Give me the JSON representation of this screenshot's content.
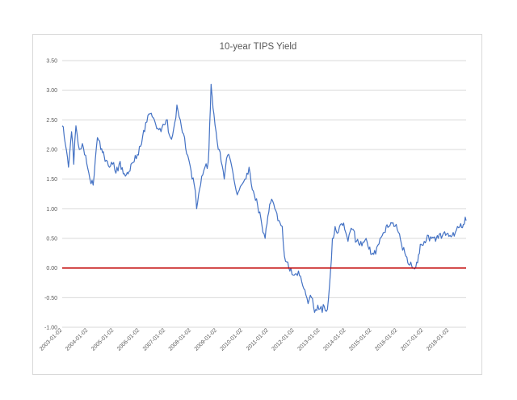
{
  "chart_data": {
    "type": "line",
    "title": "10-year TIPS Yield",
    "xlabel": "",
    "ylabel": "",
    "ylim": [
      -1.0,
      3.5
    ],
    "grid": true,
    "y_ticks": [
      "3.50",
      "3.00",
      "2.50",
      "2.00",
      "1.50",
      "1.00",
      "0.50",
      "0.00",
      "-0.50",
      "-1.00"
    ],
    "y_tick_values": [
      3.5,
      3.0,
      2.5,
      2.0,
      1.5,
      1.0,
      0.5,
      0.0,
      -0.5,
      -1.0
    ],
    "x_ticks": [
      "2003-01-02",
      "2004-01-02",
      "2005-01-02",
      "2006-01-02",
      "2007-01-02",
      "2008-01-02",
      "2009-01-02",
      "2010-01-02",
      "2011-01-02",
      "2012-01-02",
      "2013-01-02",
      "2014-01-02",
      "2015-01-02",
      "2016-01-02",
      "2017-01-02",
      "2018-01-02"
    ],
    "xlim": [
      "2003-01-02",
      "2018-08-31"
    ],
    "colors": {
      "series": "#4472c4",
      "zero_line": "#c00000",
      "grid": "#d9d9d9",
      "text": "#595959"
    },
    "series": [
      {
        "color": "#4472c4",
        "x": [
          "2003-01-02",
          "2003-02-15",
          "2003-04-01",
          "2003-05-15",
          "2003-06-15",
          "2003-07-15",
          "2003-09-01",
          "2003-10-15",
          "2003-12-01",
          "2004-01-15",
          "2004-03-15",
          "2004-05-15",
          "2004-07-01",
          "2004-09-01",
          "2004-11-01",
          "2004-12-15",
          "2005-02-01",
          "2005-04-01",
          "2005-06-15",
          "2005-09-01",
          "2005-11-01",
          "2006-01-15",
          "2006-03-15",
          "2006-05-15",
          "2006-07-01",
          "2006-09-01",
          "2006-11-01",
          "2007-01-15",
          "2007-03-15",
          "2007-05-15",
          "2007-06-15",
          "2007-08-01",
          "2007-10-01",
          "2007-11-15",
          "2008-01-15",
          "2008-03-01",
          "2008-03-20",
          "2008-05-15",
          "2008-07-15",
          "2008-09-01",
          "2008-09-20",
          "2008-10-10",
          "2008-10-25",
          "2008-11-20",
          "2008-12-20",
          "2009-01-20",
          "2009-03-01",
          "2009-04-15",
          "2009-06-01",
          "2009-08-01",
          "2009-10-01",
          "2009-12-15",
          "2010-02-01",
          "2010-04-01",
          "2010-06-01",
          "2010-08-01",
          "2010-10-15",
          "2010-11-15",
          "2011-02-01",
          "2011-04-01",
          "2011-05-15",
          "2011-07-15",
          "2011-08-15",
          "2011-10-01",
          "2011-11-15",
          "2012-01-15",
          "2012-03-01",
          "2012-05-01",
          "2012-07-15",
          "2012-09-01",
          "2012-10-15",
          "2012-12-15",
          "2013-02-01",
          "2013-03-01",
          "2013-04-15",
          "2013-05-15",
          "2013-06-25",
          "2013-08-01",
          "2013-09-15",
          "2013-11-01",
          "2013-12-31",
          "2014-02-01",
          "2014-04-01",
          "2014-06-01",
          "2014-08-01",
          "2014-10-15",
          "2015-01-15",
          "2015-03-15",
          "2015-05-01",
          "2015-07-01",
          "2015-09-01",
          "2015-11-15",
          "2016-01-15",
          "2016-03-15",
          "2016-05-01",
          "2016-07-08",
          "2016-08-15",
          "2016-10-01",
          "2016-11-20",
          "2017-01-15",
          "2017-03-15",
          "2017-05-01",
          "2017-06-25",
          "2017-08-01",
          "2017-09-15",
          "2017-11-15",
          "2018-01-15",
          "2018-03-01",
          "2018-05-01",
          "2018-06-15",
          "2018-08-31"
        ],
        "y": [
          2.4,
          2.1,
          1.7,
          2.3,
          1.75,
          2.4,
          2.0,
          2.1,
          1.9,
          1.6,
          1.4,
          2.2,
          2.0,
          1.8,
          1.7,
          1.75,
          1.6,
          1.8,
          1.55,
          1.75,
          1.9,
          2.05,
          2.3,
          2.6,
          2.55,
          2.35,
          2.3,
          2.5,
          2.2,
          2.45,
          2.75,
          2.5,
          2.2,
          1.9,
          1.5,
          1.3,
          1.0,
          1.4,
          1.7,
          1.8,
          2.4,
          3.1,
          2.9,
          2.6,
          2.3,
          2.0,
          1.8,
          1.5,
          1.9,
          1.7,
          1.3,
          1.4,
          1.5,
          1.7,
          1.3,
          1.05,
          0.6,
          0.5,
          1.1,
          1.0,
          0.8,
          0.7,
          0.2,
          0.1,
          0.0,
          -0.1,
          -0.05,
          -0.3,
          -0.6,
          -0.5,
          -0.75,
          -0.7,
          -0.75,
          -0.65,
          -0.7,
          -0.3,
          0.5,
          0.7,
          0.6,
          0.75,
          0.6,
          0.45,
          0.65,
          0.45,
          0.45,
          0.5,
          0.25,
          0.35,
          0.5,
          0.6,
          0.7,
          0.7,
          0.6,
          0.3,
          0.2,
          0.1,
          0.0,
          0.1,
          0.4,
          0.45,
          0.55,
          0.5,
          0.45,
          0.5,
          0.5,
          0.55,
          0.55,
          0.6,
          0.7,
          0.75,
          0.8
        ]
      }
    ],
    "reference_lines": [
      {
        "y": 0.0,
        "color": "#c00000"
      }
    ]
  }
}
